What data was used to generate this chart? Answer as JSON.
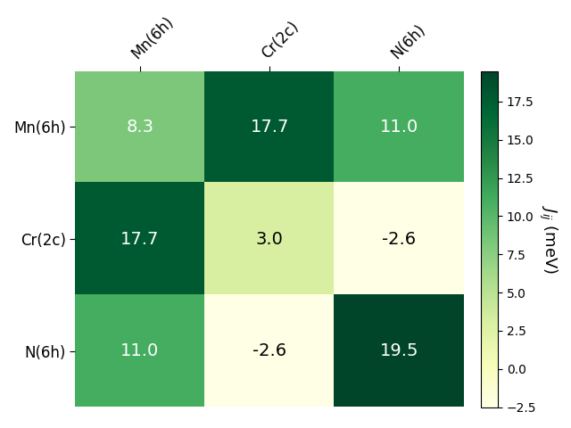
{
  "labels": [
    "Mn(6h)",
    "Cr(2c)",
    "N(6h)"
  ],
  "matrix": [
    [
      8.3,
      17.7,
      11.0
    ],
    [
      17.7,
      3.0,
      -2.6
    ],
    [
      11.0,
      -2.6,
      19.5
    ]
  ],
  "vmin": -2.5,
  "vmax": 19.5,
  "cmap": "YlGn",
  "colorbar_label": "$J_{ij}$ (meV)",
  "colorbar_ticks": [
    -2.5,
    0.0,
    2.5,
    5.0,
    7.5,
    10.0,
    12.5,
    15.0,
    17.5
  ],
  "fontsize_annot": 14,
  "fontsize_labels": 12,
  "fontsize_cbar": 13
}
